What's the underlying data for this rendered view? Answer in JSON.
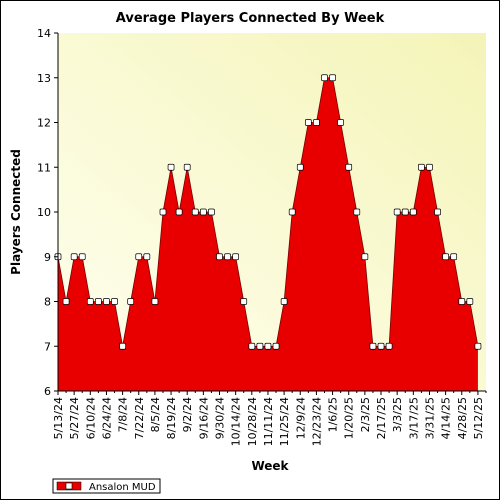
{
  "chart_data": {
    "type": "area",
    "title": "Average Players Connected By Week",
    "xlabel": "Week",
    "ylabel": "Players Connected",
    "ylim": [
      6,
      14
    ],
    "yticks": [
      6,
      7,
      8,
      9,
      10,
      11,
      12,
      13,
      14
    ],
    "x_tick_labels": [
      "5/13/24",
      "5/27/24",
      "6/10/24",
      "6/24/24",
      "7/8/24",
      "7/22/24",
      "8/5/24",
      "8/19/24",
      "9/2/24",
      "9/16/24",
      "9/30/24",
      "10/14/24",
      "10/28/24",
      "11/11/24",
      "11/25/24",
      "12/9/24",
      "12/23/24",
      "1/6/25",
      "1/20/25",
      "2/3/25",
      "2/17/25",
      "3/3/25",
      "3/17/25",
      "3/31/25",
      "4/14/25",
      "4/28/25",
      "5/12/25"
    ],
    "x": [
      "5/13/24",
      "5/20/24",
      "5/27/24",
      "6/3/24",
      "6/10/24",
      "6/17/24",
      "6/24/24",
      "7/1/24",
      "7/8/24",
      "7/15/24",
      "7/22/24",
      "7/29/24",
      "8/5/24",
      "8/12/24",
      "8/19/24",
      "8/26/24",
      "9/2/24",
      "9/9/24",
      "9/16/24",
      "9/23/24",
      "9/30/24",
      "10/7/24",
      "10/14/24",
      "10/21/24",
      "10/28/24",
      "11/4/24",
      "11/11/24",
      "11/18/24",
      "11/25/24",
      "12/2/24",
      "12/9/24",
      "12/16/24",
      "12/23/24",
      "12/30/24",
      "1/6/25",
      "1/13/25",
      "1/20/25",
      "1/27/25",
      "2/3/25",
      "2/10/25",
      "2/17/25",
      "2/24/25",
      "3/3/25",
      "3/10/25",
      "3/17/25",
      "3/24/25",
      "3/31/25",
      "4/7/25",
      "4/14/25",
      "4/21/25",
      "4/28/25",
      "5/5/25",
      "5/12/25",
      "5/19/25"
    ],
    "series": [
      {
        "name": "Ansalon MUD",
        "color": "#e80000",
        "values": [
          9,
          8,
          9,
          9,
          8,
          8,
          8,
          8,
          7,
          8,
          9,
          9,
          8,
          10,
          11,
          10,
          11,
          10,
          10,
          10,
          9,
          9,
          9,
          8,
          7,
          7,
          7,
          7,
          8,
          10,
          11,
          12,
          12,
          13,
          13,
          12,
          11,
          10,
          9,
          7,
          7,
          7,
          10,
          10,
          10,
          11,
          11,
          10,
          9,
          9,
          8,
          8,
          7,
          null
        ]
      }
    ],
    "legend_position": "bottom-left",
    "grid": false,
    "background_gradient": [
      "#fffff0",
      "#f4f4b8"
    ]
  }
}
